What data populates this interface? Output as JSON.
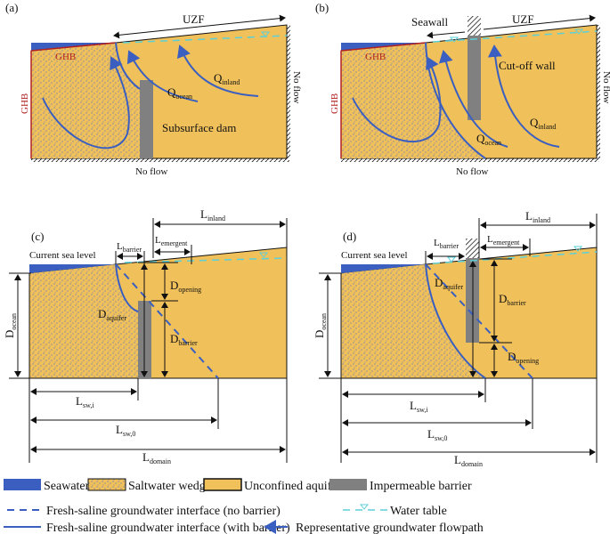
{
  "colors": {
    "seawater": "#3a5fc0",
    "aquifer": "#f0c05a",
    "barrier": "#808080",
    "ghb": "#b02020",
    "water_table": "#5cd0d8"
  },
  "panel_a": {
    "tag": "(a)",
    "uzf": "UZF",
    "ghb_top": "GHB",
    "ghb_left": "GHB",
    "no_flow_right": "No flow",
    "no_flow_bottom": "No flow",
    "q_inland": {
      "main": "Q",
      "sub": "inland"
    },
    "q_ocean": {
      "main": "Q",
      "sub": "ocean"
    },
    "barrier_label": "Subsurface dam"
  },
  "panel_b": {
    "tag": "(b)",
    "uzf": "UZF",
    "seawall": "Seawall",
    "ghb_top": "GHB",
    "ghb_left": "GHB",
    "no_flow_right": "No flow",
    "no_flow_bottom": "No flow",
    "q_inland": {
      "main": "Q",
      "sub": "inland"
    },
    "q_ocean": {
      "main": "Q",
      "sub": "ocean"
    },
    "barrier_label": "Cut-off wall"
  },
  "panel_c": {
    "tag": "(c)",
    "sea_level": "Current sea level",
    "l_inland": {
      "main": "L",
      "sub": "inland"
    },
    "l_emergent": {
      "main": "L",
      "sub": "emergent"
    },
    "l_barrier": {
      "main": "L",
      "sub": "barrier"
    },
    "d_opening": {
      "main": "D",
      "sub": "opening"
    },
    "d_barrier": {
      "main": "D",
      "sub": "barrier"
    },
    "d_aquifer": {
      "main": "D",
      "sub": "aquifer"
    },
    "d_ocean": {
      "main": "D",
      "sub": "ocean"
    },
    "l_sw_i": {
      "main": "L",
      "sub": "sw,i"
    },
    "l_sw_0": {
      "main": "L",
      "sub": "sw,0"
    },
    "l_domain": {
      "main": "L",
      "sub": "domain"
    }
  },
  "panel_d": {
    "tag": "(d)",
    "sea_level": "Current sea level",
    "l_inland": {
      "main": "L",
      "sub": "inland"
    },
    "l_emergent": {
      "main": "L",
      "sub": "emergent"
    },
    "l_barrier": {
      "main": "L",
      "sub": "barrier"
    },
    "d_opening": {
      "main": "D",
      "sub": "opening"
    },
    "d_barrier": {
      "main": "D",
      "sub": "barrier"
    },
    "d_aquifer": {
      "main": "D",
      "sub": "aquifer"
    },
    "d_ocean": {
      "main": "D",
      "sub": "ocean"
    },
    "l_sw_i": {
      "main": "L",
      "sub": "sw,i"
    },
    "l_sw_0": {
      "main": "L",
      "sub": "sw,0"
    },
    "l_domain": {
      "main": "L",
      "sub": "domain"
    }
  },
  "legend": {
    "seawater": "Seawater",
    "saltwater_wedge": "Saltwater wedge",
    "unconfined_aquifer": "Unconfined aquifer",
    "impermeable_barrier": "Impermeable barrier",
    "interface_no_barrier": "Fresh-saline groundwater interface (no barrier)",
    "water_table": "Water table",
    "interface_with_barrier": "Fresh-saline groundwater interface (with barrier)",
    "flowpath": "Representative groundwater flowpath"
  }
}
